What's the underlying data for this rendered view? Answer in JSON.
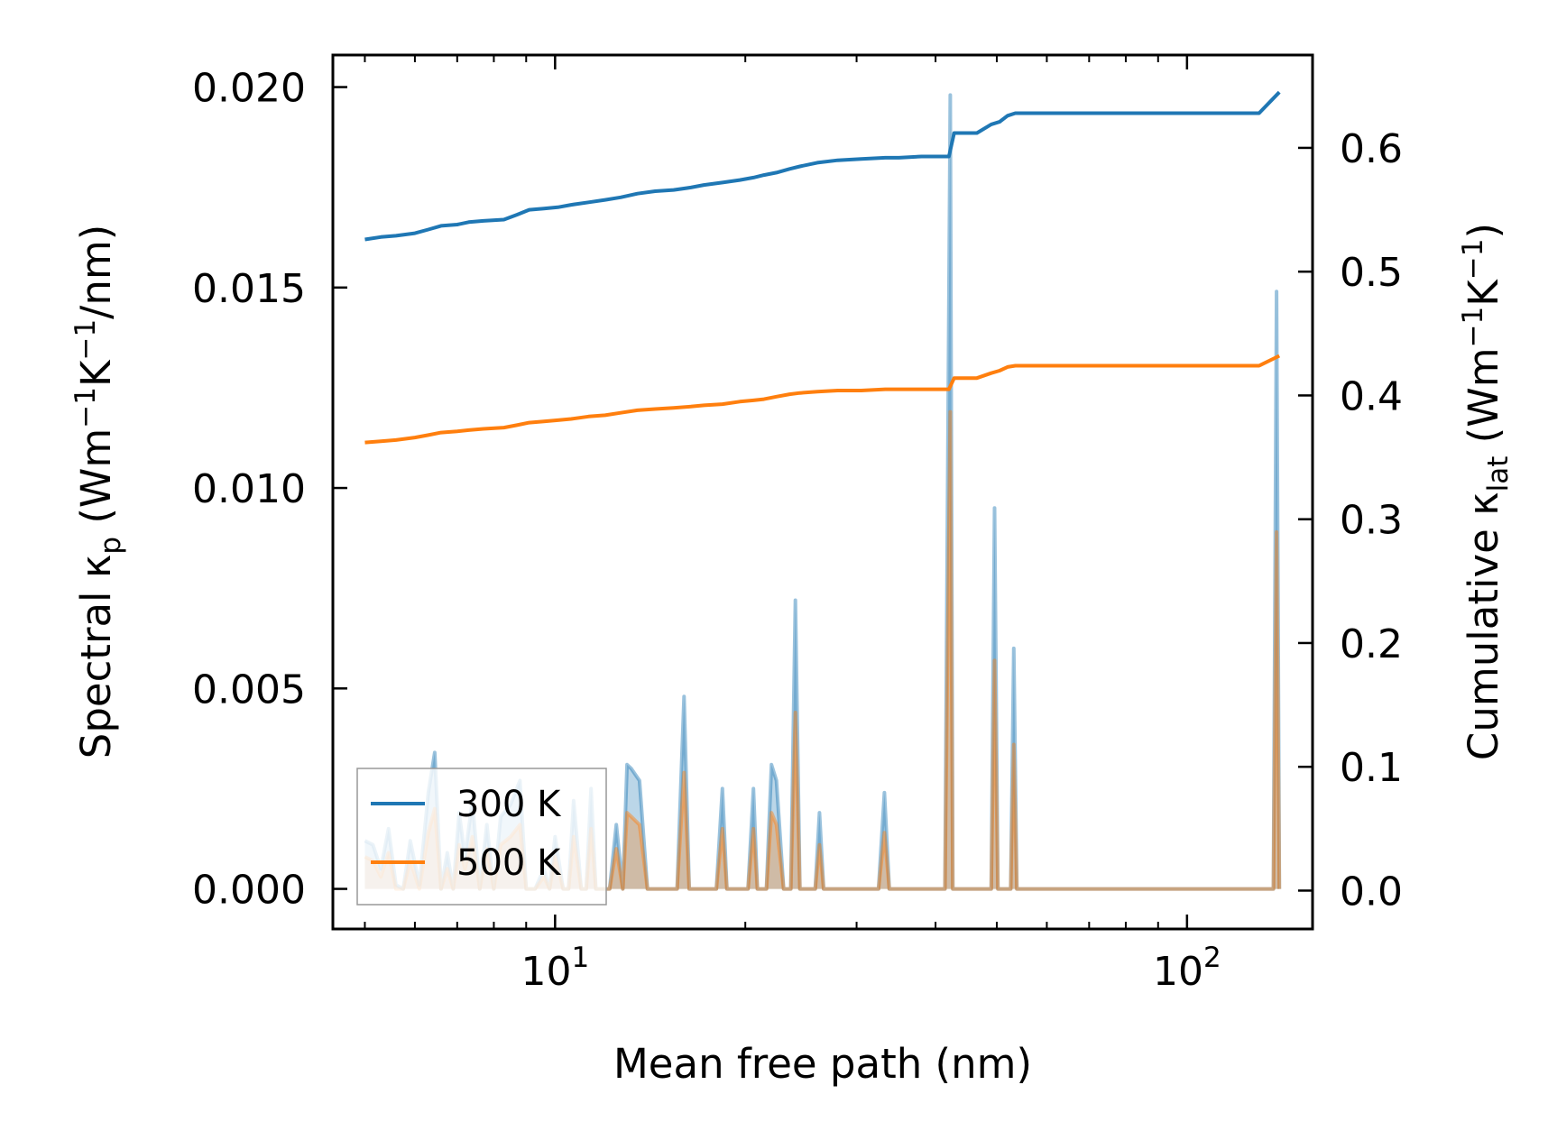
{
  "chart_data": {
    "type": "line",
    "title": "",
    "xlabel": "Mean free path (nm)",
    "ylabel_left": {
      "text": "Spectral κ",
      "sub": "p",
      "units_prefix": " (Wm",
      "sup1": "−1",
      "units_mid": "K",
      "sup2": "−1",
      "units_suffix": "/nm)"
    },
    "ylabel_right": {
      "text": "Cumulative κ",
      "sub": "lat",
      "units_prefix": " (Wm",
      "sup1": "−1",
      "units_mid": "K",
      "sup2": "−1",
      "units_suffix": ")"
    },
    "x_scale": "log",
    "xlim": [
      4.45,
      158
    ],
    "ylim_left": [
      -0.001,
      0.0208
    ],
    "ylim_right": [
      -0.031,
      0.675
    ],
    "x_ticks": [
      {
        "value": 10,
        "base": "10",
        "exp": "1"
      },
      {
        "value": 100,
        "base": "10",
        "exp": "2"
      }
    ],
    "y_ticks_left": [
      {
        "value": 0.0,
        "label": "0.000"
      },
      {
        "value": 0.005,
        "label": "0.005"
      },
      {
        "value": 0.01,
        "label": "0.010"
      },
      {
        "value": 0.015,
        "label": "0.015"
      },
      {
        "value": 0.02,
        "label": "0.020"
      }
    ],
    "y_ticks_right": [
      {
        "value": 0.0,
        "label": "0.0"
      },
      {
        "value": 0.1,
        "label": "0.1"
      },
      {
        "value": 0.2,
        "label": "0.2"
      },
      {
        "value": 0.3,
        "label": "0.3"
      },
      {
        "value": 0.4,
        "label": "0.4"
      },
      {
        "value": 0.5,
        "label": "0.5"
      },
      {
        "value": 0.6,
        "label": "0.6"
      }
    ],
    "legend": {
      "placement": "lower-left",
      "entries": [
        "300 K",
        "500 K"
      ]
    },
    "series": [
      {
        "name": "300 K",
        "kind": "cumulative",
        "axis": "right",
        "color": "#1f77b4",
        "x": [
          5.0,
          5.3,
          5.6,
          6.0,
          6.3,
          6.6,
          7.0,
          7.3,
          7.7,
          8.3,
          8.7,
          9.1,
          9.6,
          10.1,
          10.6,
          11.3,
          12.0,
          12.7,
          13.5,
          14.4,
          15.4,
          16.4,
          17.2,
          18.4,
          19.6,
          20.6,
          21.4,
          22.4,
          23.5,
          24.4,
          26.0,
          28.0,
          30.5,
          33.3,
          35.0,
          38.0,
          42.0,
          42.8,
          44.0,
          46.5,
          49.0,
          50.5,
          52.0,
          53.5,
          60.0,
          80.0,
          100.0,
          130.0,
          140.0
        ],
        "y": [
          0.526,
          0.528,
          0.529,
          0.531,
          0.534,
          0.537,
          0.538,
          0.54,
          0.541,
          0.542,
          0.546,
          0.55,
          0.551,
          0.552,
          0.554,
          0.556,
          0.558,
          0.56,
          0.563,
          0.565,
          0.566,
          0.568,
          0.57,
          0.572,
          0.574,
          0.576,
          0.578,
          0.58,
          0.583,
          0.585,
          0.588,
          0.59,
          0.591,
          0.592,
          0.592,
          0.593,
          0.593,
          0.612,
          0.612,
          0.612,
          0.619,
          0.621,
          0.626,
          0.628,
          0.628,
          0.628,
          0.628,
          0.628,
          0.645
        ]
      },
      {
        "name": "500 K",
        "kind": "cumulative",
        "axis": "right",
        "color": "#ff7f0e",
        "x": [
          5.0,
          5.3,
          5.6,
          6.0,
          6.3,
          6.6,
          7.0,
          7.3,
          7.7,
          8.3,
          8.7,
          9.1,
          9.6,
          10.1,
          10.6,
          11.3,
          12.0,
          12.7,
          13.5,
          14.4,
          15.4,
          16.4,
          17.2,
          18.4,
          19.6,
          20.6,
          21.4,
          22.4,
          23.5,
          24.4,
          26.0,
          28.0,
          30.5,
          33.3,
          35.0,
          38.0,
          42.0,
          42.8,
          44.0,
          46.5,
          49.0,
          50.5,
          52.0,
          53.5,
          60.0,
          80.0,
          100.0,
          130.0,
          140.0
        ],
        "y": [
          0.362,
          0.363,
          0.364,
          0.366,
          0.368,
          0.37,
          0.371,
          0.372,
          0.373,
          0.374,
          0.376,
          0.378,
          0.379,
          0.38,
          0.381,
          0.383,
          0.384,
          0.386,
          0.388,
          0.389,
          0.39,
          0.391,
          0.392,
          0.393,
          0.395,
          0.396,
          0.397,
          0.399,
          0.401,
          0.402,
          0.403,
          0.404,
          0.404,
          0.405,
          0.405,
          0.405,
          0.405,
          0.414,
          0.414,
          0.414,
          0.418,
          0.42,
          0.423,
          0.424,
          0.424,
          0.424,
          0.424,
          0.424,
          0.432
        ]
      },
      {
        "name": "300 K",
        "kind": "spectral",
        "axis": "left",
        "color": "#1f77b4",
        "x": [
          5.0,
          5.15,
          5.3,
          5.45,
          5.6,
          5.75,
          5.9,
          6.1,
          6.3,
          6.45,
          6.6,
          6.75,
          6.9,
          7.05,
          7.2,
          7.4,
          7.6,
          7.8,
          8.0,
          8.2,
          8.5,
          8.8,
          9.0,
          9.3,
          9.6,
          9.8,
          10.0,
          10.3,
          10.5,
          10.7,
          11.0,
          11.2,
          11.4,
          11.6,
          11.8,
          12.2,
          12.5,
          12.8,
          13.0,
          13.2,
          13.6,
          14.0,
          15.6,
          16.0,
          16.3,
          18.0,
          18.4,
          18.7,
          20.2,
          20.6,
          20.9,
          21.6,
          22.0,
          22.4,
          23.0,
          23.6,
          24.0,
          24.4,
          25.8,
          26.2,
          26.6,
          32.5,
          33.2,
          33.8,
          41.4,
          42.2,
          42.6,
          43.0,
          43.8,
          49.0,
          49.6,
          50.2,
          52.6,
          53.2,
          53.8,
          137.0,
          138.6,
          140.0
        ],
        "y": [
          0.0012,
          0.0011,
          0.0005,
          0.0015,
          0.0001,
          0.0,
          0.0012,
          0.0001,
          0.0024,
          0.0034,
          0.0,
          0.0009,
          0.0,
          0.0019,
          0.0008,
          0.0022,
          0.0,
          0.0016,
          0.0,
          0.0018,
          0.0021,
          0.0027,
          0.0,
          0.0,
          0.0005,
          0.0,
          0.0013,
          0.0,
          0.0,
          0.0022,
          0.0,
          0.0,
          0.0025,
          0.0,
          0.0,
          0.0,
          0.0016,
          0.0,
          0.0031,
          0.003,
          0.0027,
          0.0,
          0.0,
          0.0048,
          0.0,
          0.0,
          0.0025,
          0.0,
          0.0,
          0.0025,
          0.0,
          0.0,
          0.0031,
          0.0027,
          0.0,
          0.0,
          0.0072,
          0.0,
          0.0,
          0.0019,
          0.0,
          0.0,
          0.0024,
          0.0,
          0.0,
          0.0198,
          0.0,
          0.0,
          0.0,
          0.0,
          0.0095,
          0.0,
          0.0,
          0.006,
          0.0,
          0.0,
          0.0149,
          0.0
        ]
      },
      {
        "name": "500 K",
        "kind": "spectral",
        "axis": "left",
        "color": "#ff7f0e",
        "x": [
          5.0,
          5.15,
          5.3,
          5.45,
          5.6,
          5.75,
          5.9,
          6.1,
          6.3,
          6.45,
          6.6,
          6.75,
          6.9,
          7.05,
          7.2,
          7.4,
          7.6,
          7.8,
          8.0,
          8.2,
          8.5,
          8.8,
          9.0,
          9.3,
          9.6,
          9.8,
          10.0,
          10.3,
          10.5,
          10.7,
          11.0,
          11.2,
          11.4,
          11.6,
          11.8,
          12.2,
          12.5,
          12.8,
          13.0,
          13.2,
          13.6,
          14.0,
          15.6,
          16.0,
          16.3,
          18.0,
          18.4,
          18.7,
          20.2,
          20.6,
          20.9,
          21.6,
          22.0,
          22.4,
          23.0,
          23.6,
          24.0,
          24.4,
          25.8,
          26.2,
          26.6,
          32.5,
          33.2,
          33.8,
          41.4,
          42.2,
          42.6,
          43.0,
          43.8,
          49.0,
          49.6,
          50.2,
          52.6,
          53.2,
          53.8,
          137.0,
          138.6,
          140.0
        ],
        "y": [
          0.0008,
          0.0007,
          0.0003,
          0.0009,
          0.0,
          0.0,
          0.0007,
          0.0,
          0.0014,
          0.002,
          0.0,
          0.0005,
          0.0,
          0.0011,
          0.0005,
          0.0013,
          0.0,
          0.001,
          0.0,
          0.0011,
          0.0013,
          0.0016,
          0.0,
          0.0,
          0.0003,
          0.0,
          0.0008,
          0.0,
          0.0,
          0.0013,
          0.0,
          0.0,
          0.0015,
          0.0,
          0.0,
          0.0,
          0.001,
          0.0,
          0.0019,
          0.0018,
          0.0016,
          0.0,
          0.0,
          0.0029,
          0.0,
          0.0,
          0.0015,
          0.0,
          0.0,
          0.0015,
          0.0,
          0.0,
          0.0019,
          0.0016,
          0.0,
          0.0,
          0.0044,
          0.0,
          0.0,
          0.0011,
          0.0,
          0.0,
          0.0014,
          0.0,
          0.0,
          0.0119,
          0.0,
          0.0,
          0.0,
          0.0,
          0.0057,
          0.0,
          0.0,
          0.0036,
          0.0,
          0.0,
          0.0089,
          0.0
        ]
      }
    ]
  }
}
